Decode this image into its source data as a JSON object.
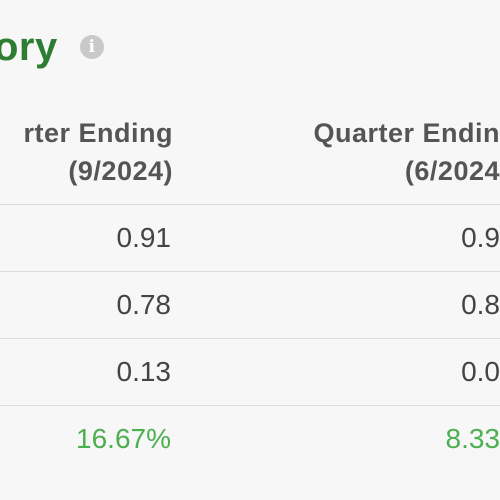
{
  "section": {
    "title": "ory",
    "info_icon": "info-icon"
  },
  "table": {
    "columns": [
      {
        "label": "rter Ending\n(9/2024)"
      },
      {
        "label": "Quarter Endin\n(6/2024"
      }
    ],
    "rows": [
      {
        "values": [
          "0.91",
          "0.9"
        ]
      },
      {
        "values": [
          "0.78",
          "0.8"
        ]
      },
      {
        "values": [
          "0.13",
          "0.0"
        ]
      },
      {
        "values": [
          "16.67%",
          "8.33"
        ],
        "color": "#4caf50"
      }
    ]
  }
}
